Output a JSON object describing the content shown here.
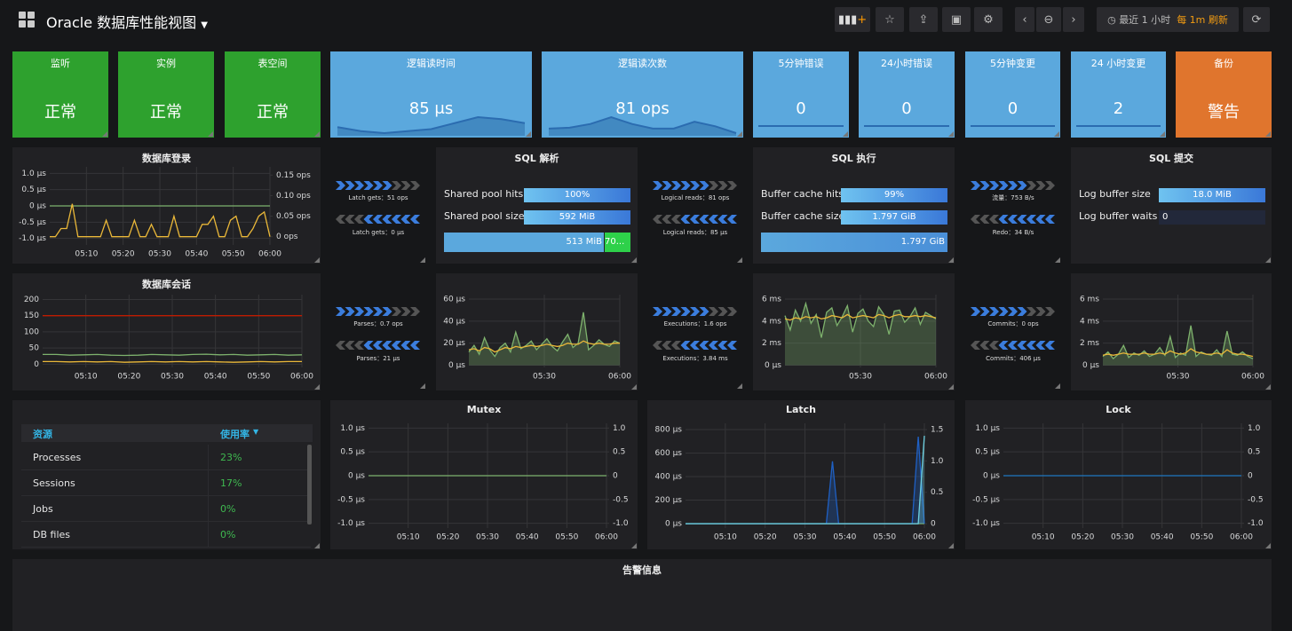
{
  "header": {
    "title": "Oracle 数据库性能视图",
    "time_range": "最近 1 小时",
    "refresh": "每 1m 刷新"
  },
  "stats": [
    {
      "title": "监听",
      "value": "正常",
      "color": "#2ea12e"
    },
    {
      "title": "实例",
      "value": "正常",
      "color": "#2ea12e"
    },
    {
      "title": "表空间",
      "value": "正常",
      "color": "#2ea12e"
    },
    {
      "title": "逻辑读时间",
      "value": "85 μs",
      "color": "#5ba8dd",
      "spark": [
        60,
        50,
        45,
        50,
        55,
        70,
        85,
        80,
        70
      ]
    },
    {
      "title": "逻辑读次数",
      "value": "81 ops",
      "color": "#5ba8dd",
      "spark": [
        60,
        62,
        70,
        85,
        70,
        60,
        60,
        75,
        65,
        50
      ]
    },
    {
      "title": "5分钟错误",
      "value": "0",
      "color": "#5ba8dd"
    },
    {
      "title": "24小时错误",
      "value": "0",
      "color": "#5ba8dd"
    },
    {
      "title": "5分钟变更",
      "value": "0",
      "color": "#5ba8dd"
    },
    {
      "title": "24 小时变更",
      "value": "2",
      "color": "#5ba8dd"
    },
    {
      "title": "备份",
      "value": "警告",
      "color": "#e0752d"
    }
  ],
  "flows": [
    {
      "top": "Latch gets：51 ops",
      "bottom": "Latch gets：0 μs"
    },
    {
      "top": "Logical reads：81 ops",
      "bottom": "Logical reads：85 μs"
    },
    {
      "top": "流量：753 B/s",
      "bottom": "Redo：34 B/s"
    },
    {
      "top": "Parses：0.7 ops",
      "bottom": "Parses：21 μs"
    },
    {
      "top": "Executions：1.6 ops",
      "bottom": "Executions：3.84 ms"
    },
    {
      "top": "Commits：0 ops",
      "bottom": "Commits：406 μs"
    }
  ],
  "gauges": [
    {
      "title": "SQL 解析",
      "rows": [
        {
          "label": "Shared pool hits",
          "value": "100%"
        },
        {
          "label": "Shared pool size",
          "value": "592 MiB"
        }
      ],
      "bar": [
        "513 MiB",
        "70..."
      ]
    },
    {
      "title": "SQL 执行",
      "rows": [
        {
          "label": "Buffer cache hits",
          "value": "99%"
        },
        {
          "label": "Buffer cache size",
          "value": "1.797 GiB"
        }
      ],
      "bar": [
        "1.797 GiB"
      ]
    },
    {
      "title": "SQL 提交",
      "rows": [
        {
          "label": "Log buffer size",
          "value": "18.0 MiB"
        },
        {
          "label": "Log buffer waits",
          "value": "0"
        }
      ]
    }
  ],
  "charts": [
    {
      "title": "数据库登录",
      "yticks": [
        {
          "value": 1,
          "label": "1.0 μs"
        },
        {
          "value": 0.5,
          "label": "0.5 μs"
        },
        {
          "value": 0,
          "label": "0 μs"
        },
        {
          "value": -0.5,
          "label": "-0.5 μs"
        },
        {
          "value": -1,
          "label": "-1.0 μs"
        }
      ],
      "ylim": [
        -1.2,
        1.2
      ],
      "y2ticks": [
        {
          "value": 0.15,
          "label": "0.15 ops"
        },
        {
          "value": 0.1,
          "label": "0.10 ops"
        },
        {
          "value": 0.05,
          "label": "0.05 ops"
        },
        {
          "value": 0,
          "label": "0 ops"
        }
      ],
      "y2lim": [
        -0.02,
        0.17
      ],
      "xticks": [
        "05:10",
        "05:20",
        "05:30",
        "05:40",
        "05:50",
        "06:00"
      ],
      "series": [
        {
          "color": "#7eb26d",
          "values": [
            0,
            0
          ]
        },
        {
          "color": "#eab839",
          "axis": "y2",
          "values": [
            0,
            0,
            0.02,
            0.02,
            0.08,
            0,
            0,
            0,
            0,
            0,
            0.04,
            0,
            0,
            0,
            0,
            0.04,
            0,
            0,
            0.03,
            0,
            0,
            0,
            0.05,
            0,
            0,
            0,
            0,
            0.03,
            0.03,
            0.05,
            0,
            0,
            0.04,
            0.05,
            0,
            0,
            0.02,
            0.05,
            0.06,
            0
          ]
        }
      ]
    },
    {
      "title": "数据库会话",
      "yticks": [
        200,
        150,
        100,
        50,
        0
      ],
      "ylim": [
        -10,
        215
      ],
      "xticks": [
        "05:10",
        "05:20",
        "05:30",
        "05:40",
        "05:50",
        "06:00"
      ],
      "series": [
        {
          "color": "#bf1b00",
          "values": [
            150,
            150
          ]
        },
        {
          "color": "#7eb26d",
          "values": [
            30,
            30,
            28,
            29,
            30,
            28,
            27,
            28,
            30,
            29,
            28,
            30,
            31,
            29,
            30,
            28,
            29,
            30,
            28,
            29
          ]
        },
        {
          "color": "#eab839",
          "values": [
            8,
            8,
            7,
            8,
            7,
            8,
            6,
            7,
            8,
            7,
            8,
            7,
            8,
            7,
            6,
            7,
            8,
            7,
            8,
            8
          ]
        }
      ]
    },
    {
      "yticks": [
        {
          "value": 60,
          "label": "60 μs"
        },
        {
          "value": 40,
          "label": "40 μs"
        },
        {
          "value": 20,
          "label": "20 μs"
        },
        {
          "value": 0,
          "label": "0 μs"
        }
      ],
      "ylim": [
        -2,
        64
      ],
      "xticks": [
        "05:30",
        "06:00"
      ],
      "series": [
        {
          "color": "#7eb26d",
          "fill": true,
          "values": [
            12,
            18,
            10,
            25,
            14,
            8,
            16,
            20,
            12,
            30,
            15,
            18,
            22,
            14,
            19,
            24,
            17,
            13,
            21,
            28,
            16,
            20,
            48,
            14,
            18,
            23,
            19,
            17,
            22,
            20
          ]
        },
        {
          "color": "#eab839",
          "values": [
            14,
            15,
            13,
            16,
            15,
            12,
            14,
            16,
            15,
            17,
            16,
            17,
            18,
            17,
            18,
            19,
            18,
            17,
            18,
            20,
            19,
            19,
            22,
            20,
            19,
            20,
            19,
            19,
            20,
            20
          ]
        }
      ]
    },
    {
      "yticks": [
        {
          "value": 6,
          "label": "6 ms"
        },
        {
          "value": 4,
          "label": "4 ms"
        },
        {
          "value": 2,
          "label": "2 ms"
        },
        {
          "value": 0,
          "label": "0 μs"
        }
      ],
      "ylim": [
        -0.2,
        6.4
      ],
      "xticks": [
        "05:30",
        "06:00"
      ],
      "series": [
        {
          "color": "#7eb26d",
          "fill": true,
          "values": [
            4.5,
            3.2,
            5.0,
            4.0,
            5.6,
            3.8,
            4.6,
            2.5,
            4.8,
            5.2,
            3.6,
            4.4,
            5.4,
            3.0,
            4.7,
            5.1,
            4.0,
            3.5,
            5.3,
            4.6,
            2.8,
            4.9,
            5.0,
            3.9,
            4.4,
            5.2,
            3.7,
            4.8,
            4.5,
            4.2
          ]
        },
        {
          "color": "#eab839",
          "values": [
            4.2,
            4.1,
            4.3,
            4.2,
            4.4,
            4.3,
            4.4,
            4.2,
            4.3,
            4.5,
            4.4,
            4.3,
            4.6,
            4.3,
            4.4,
            4.5,
            4.4,
            4.3,
            4.6,
            4.5,
            4.3,
            4.5,
            4.6,
            4.4,
            4.4,
            4.5,
            4.4,
            4.5,
            4.4,
            4.3
          ]
        }
      ]
    },
    {
      "yticks": [
        {
          "value": 6,
          "label": "6 ms"
        },
        {
          "value": 4,
          "label": "4 ms"
        },
        {
          "value": 2,
          "label": "2 ms"
        },
        {
          "value": 0,
          "label": "0 μs"
        }
      ],
      "ylim": [
        -0.2,
        6.4
      ],
      "xticks": [
        "05:30",
        "06:00"
      ],
      "series": [
        {
          "color": "#7eb26d",
          "fill": true,
          "values": [
            0.8,
            1.2,
            0.6,
            1.0,
            1.8,
            0.7,
            1.1,
            0.9,
            1.3,
            0.8,
            1.0,
            1.6,
            0.9,
            2.6,
            0.7,
            1.1,
            0.9,
            3.6,
            0.8,
            1.2,
            1.0,
            0.9,
            1.4,
            0.8,
            3.1,
            1.0,
            0.9,
            1.2,
            0.8,
            0.6
          ]
        },
        {
          "color": "#eab839",
          "values": [
            0.9,
            1.0,
            0.9,
            1.0,
            1.1,
            1.0,
            1.0,
            1.0,
            1.1,
            1.0,
            1.0,
            1.1,
            1.0,
            1.3,
            1.1,
            1.0,
            1.1,
            1.5,
            1.2,
            1.1,
            1.0,
            1.0,
            1.1,
            1.0,
            1.4,
            1.1,
            1.0,
            1.0,
            0.9,
            0.8
          ]
        }
      ]
    },
    {
      "title": "Mutex",
      "yticks": [
        {
          "value": 1,
          "label": "1.0 μs"
        },
        {
          "value": 0.5,
          "label": "0.5 μs"
        },
        {
          "value": 0,
          "label": "0 μs"
        },
        {
          "value": -0.5,
          "label": "-0.5 μs"
        },
        {
          "value": -1,
          "label": "-1.0 μs"
        }
      ],
      "ylim": [
        -1.1,
        1.1
      ],
      "y2ticks": [
        {
          "value": 1,
          "label": "1.0"
        },
        0.5,
        0,
        -0.5,
        {
          "value": -1,
          "label": "-1.0"
        }
      ],
      "y2lim": [
        -1.1,
        1.1
      ],
      "xticks": [
        "05:10",
        "05:20",
        "05:30",
        "05:40",
        "05:50",
        "06:00"
      ],
      "series": [
        {
          "color": "#7eb26d",
          "values": [
            0,
            0
          ]
        }
      ]
    },
    {
      "title": "Latch",
      "yticks": [
        {
          "value": 800,
          "label": "800 μs"
        },
        {
          "value": 600,
          "label": "600 μs"
        },
        {
          "value": 400,
          "label": "400 μs"
        },
        {
          "value": 200,
          "label": "200 μs"
        },
        {
          "value": 0,
          "label": "0 μs"
        }
      ],
      "ylim": [
        -38,
        853
      ],
      "y2ticks": [
        1.5,
        {
          "value": 1,
          "label": "1.0"
        },
        0.5,
        0
      ],
      "y2lim": [
        -0.07,
        1.6
      ],
      "xticks": [
        "05:10",
        "05:20",
        "05:30",
        "05:40",
        "05:50",
        "06:00"
      ],
      "series": [
        {
          "color": "#7eb26d",
          "values": [
            0,
            0
          ]
        },
        {
          "color": "#1f60c4",
          "fill": true,
          "values": [
            0,
            0,
            0,
            0,
            0,
            0,
            0,
            0,
            0,
            0,
            0,
            0,
            0,
            0,
            0,
            0,
            0,
            0,
            0,
            0,
            0,
            0,
            0,
            0,
            530,
            0,
            0,
            0,
            0,
            0,
            0,
            0,
            0,
            0,
            0,
            0,
            0,
            0,
            740,
            0
          ]
        },
        {
          "color": "#6ed0e0",
          "axis": "y2",
          "fill": true,
          "values": [
            0,
            0,
            0,
            0,
            0,
            0,
            0,
            0,
            0,
            0,
            0,
            0,
            0,
            0,
            0,
            0,
            0,
            0,
            0,
            0,
            0,
            0,
            0,
            0,
            0,
            0,
            0,
            0,
            0,
            0,
            0,
            0,
            0,
            0,
            0,
            0,
            0,
            0,
            0,
            1.4
          ]
        }
      ]
    },
    {
      "title": "Lock",
      "yticks": [
        {
          "value": 1,
          "label": "1.0 μs"
        },
        {
          "value": 0.5,
          "label": "0.5 μs"
        },
        {
          "value": 0,
          "label": "0 μs"
        },
        {
          "value": -0.5,
          "label": "-0.5 μs"
        },
        {
          "value": -1,
          "label": "-1.0 μs"
        }
      ],
      "ylim": [
        -1.1,
        1.1
      ],
      "y2ticks": [
        {
          "value": 1,
          "label": "1.0"
        },
        0.5,
        0,
        -0.5,
        {
          "value": -1,
          "label": "-1.0"
        }
      ],
      "y2lim": [
        -1.1,
        1.1
      ],
      "xticks": [
        "05:10",
        "05:20",
        "05:30",
        "05:40",
        "05:50",
        "06:00"
      ],
      "series": [
        {
          "color": "#1f78c1",
          "values": [
            0,
            0
          ]
        }
      ]
    }
  ],
  "table": {
    "headers": [
      "资源",
      "使用率"
    ],
    "rows": [
      [
        "Processes",
        "23%"
      ],
      [
        "Sessions",
        "17%"
      ],
      [
        "Jobs",
        "0%"
      ],
      [
        "DB files",
        "0%"
      ]
    ]
  },
  "alerts": {
    "title": "告警信息"
  }
}
